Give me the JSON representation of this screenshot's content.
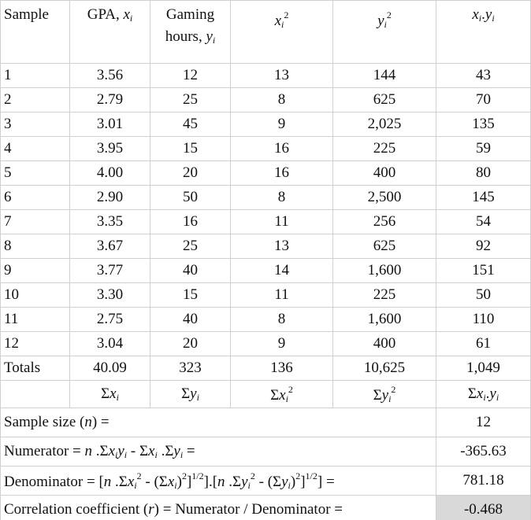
{
  "headers": {
    "sample": "Sample",
    "gpa": "GPA, ",
    "gaming_line1": "Gaming",
    "gaming_line2": "hours, ",
    "x": "x",
    "y": "y",
    "i": "i",
    "two": "2",
    "dot": "."
  },
  "rows": [
    {
      "sample": "1",
      "x": "3.56",
      "y": "12",
      "x2": "13",
      "y2": "144",
      "xy": "43"
    },
    {
      "sample": "2",
      "x": "2.79",
      "y": "25",
      "x2": "8",
      "y2": "625",
      "xy": "70"
    },
    {
      "sample": "3",
      "x": "3.01",
      "y": "45",
      "x2": "9",
      "y2": "2,025",
      "xy": "135"
    },
    {
      "sample": "4",
      "x": "3.95",
      "y": "15",
      "x2": "16",
      "y2": "225",
      "xy": "59"
    },
    {
      "sample": "5",
      "x": "4.00",
      "y": "20",
      "x2": "16",
      "y2": "400",
      "xy": "80"
    },
    {
      "sample": "6",
      "x": "2.90",
      "y": "50",
      "x2": "8",
      "y2": "2,500",
      "xy": "145"
    },
    {
      "sample": "7",
      "x": "3.35",
      "y": "16",
      "x2": "11",
      "y2": "256",
      "xy": "54"
    },
    {
      "sample": "8",
      "x": "3.67",
      "y": "25",
      "x2": "13",
      "y2": "625",
      "xy": "92"
    },
    {
      "sample": "9",
      "x": "3.77",
      "y": "40",
      "x2": "14",
      "y2": "1,600",
      "xy": "151"
    },
    {
      "sample": "10",
      "x": "3.30",
      "y": "15",
      "x2": "11",
      "y2": "225",
      "xy": "50"
    },
    {
      "sample": "11",
      "x": "2.75",
      "y": "40",
      "x2": "8",
      "y2": "1,600",
      "xy": "110"
    },
    {
      "sample": "12",
      "x": "3.04",
      "y": "20",
      "x2": "9",
      "y2": "400",
      "xy": "61"
    }
  ],
  "totals": {
    "label": "Totals",
    "x": "40.09",
    "y": "323",
    "x2": "136",
    "y2": "10,625",
    "xy": "1,049"
  },
  "sigma": "Σ",
  "sample_size": {
    "label": "Sample size (",
    "n": "n",
    "close": ") =",
    "value": "12"
  },
  "numerator": {
    "label": "Numerator = ",
    "formula_a": " .Σ",
    "formula_b": " - Σ",
    "formula_c": " .Σ",
    "eq": " =",
    "value": "-365.63"
  },
  "denominator": {
    "label": "Denominator = [",
    "p1": " .Σ",
    "p2": " - (Σ",
    "p3": ")",
    "half": "1/2",
    "p4": "].[",
    "p5": "] =",
    "value": "781.18"
  },
  "correlation": {
    "label": "Correlation coefficient (",
    "r": "r",
    "rest": ") = Numerator / Denominator =",
    "value": "-0.468",
    "highlight": "#d9d9d9"
  }
}
